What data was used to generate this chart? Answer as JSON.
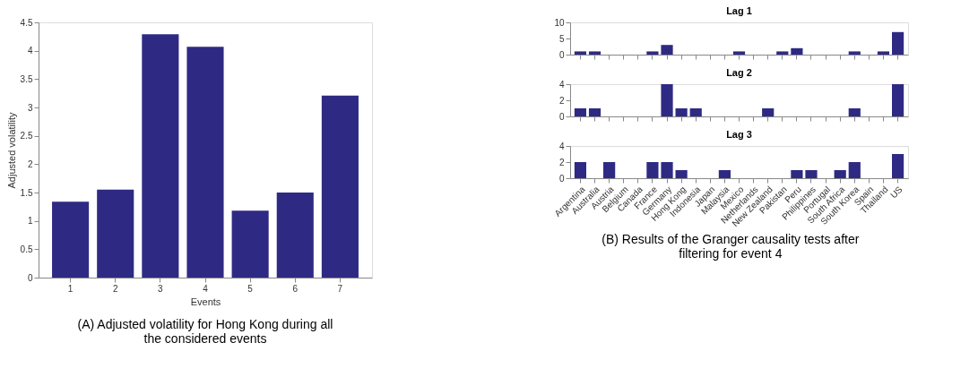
{
  "chart_data": [
    {
      "type": "bar",
      "categories": [
        "1",
        "2",
        "3",
        "4",
        "5",
        "6",
        "7"
      ],
      "values": [
        1.34,
        1.55,
        4.29,
        4.07,
        1.18,
        1.5,
        3.21
      ],
      "color": "#2e2a84",
      "xlabel": "Events",
      "ylabel": "Adjusted volatility",
      "ylim": [
        0,
        4.5
      ],
      "yticks": [
        0,
        0.5,
        1,
        1.5,
        2,
        2.5,
        3,
        3.5,
        4,
        4.5
      ],
      "grid": false,
      "annotations": [
        "(A) Adjusted volatility for Hong Kong during all the considered events"
      ]
    },
    {
      "type": "bar",
      "title": "Lag 1",
      "categories": [
        "Argentina",
        "Australia",
        "Austria",
        "Belgium",
        "Canada",
        "France",
        "Germany",
        "Hong Kong",
        "Indonesia",
        "Japan",
        "Malaysia",
        "Mexico",
        "Netherlands",
        "New Zealand",
        "Pakistan",
        "Peru",
        "Philippines",
        "Portugal",
        "South Africa",
        "South Korea",
        "Spain",
        "Thailand",
        "US"
      ],
      "values": [
        1,
        1,
        0,
        0,
        0,
        1,
        3,
        0,
        0,
        0,
        0,
        1,
        0,
        0,
        1,
        2,
        0,
        0,
        0,
        1,
        0,
        1,
        7
      ],
      "color": "#2e2a84",
      "ylim": [
        0,
        10
      ],
      "yticks": [
        0,
        5,
        10
      ],
      "grid": false,
      "tick_labels": "y"
    },
    {
      "type": "bar",
      "title": "Lag 2",
      "categories": [
        "Argentina",
        "Australia",
        "Austria",
        "Belgium",
        "Canada",
        "France",
        "Germany",
        "Hong Kong",
        "Indonesia",
        "Japan",
        "Malaysia",
        "Mexico",
        "Netherlands",
        "New Zealand",
        "Pakistan",
        "Peru",
        "Philippines",
        "Portugal",
        "South Africa",
        "South Korea",
        "Spain",
        "Thailand",
        "US"
      ],
      "values": [
        1,
        1,
        0,
        0,
        0,
        0,
        4,
        1,
        1,
        0,
        0,
        0,
        0,
        1,
        0,
        0,
        0,
        0,
        0,
        1,
        0,
        0,
        4
      ],
      "color": "#2e2a84",
      "ylim": [
        0,
        4
      ],
      "yticks": [
        0,
        2,
        4
      ],
      "grid": false,
      "tick_labels": "y"
    },
    {
      "type": "bar",
      "title": "Lag 3",
      "categories": [
        "Argentina",
        "Australia",
        "Austria",
        "Belgium",
        "Canada",
        "France",
        "Germany",
        "Hong Kong",
        "Indonesia",
        "Japan",
        "Malaysia",
        "Mexico",
        "Netherlands",
        "New Zealand",
        "Pakistan",
        "Peru",
        "Philippines",
        "Portugal",
        "South Africa",
        "South Korea",
        "Spain",
        "Thailand",
        "US"
      ],
      "values": [
        2,
        0,
        2,
        0,
        0,
        2,
        2,
        1,
        0,
        0,
        1,
        0,
        0,
        0,
        0,
        1,
        1,
        0,
        1,
        2,
        0,
        0,
        3
      ],
      "color": "#2e2a84",
      "ylim": [
        0,
        4
      ],
      "yticks": [
        0,
        2,
        4
      ],
      "grid": false,
      "annotations": [
        "(B) Results of the Granger causality tests after filtering for event 4"
      ]
    }
  ]
}
